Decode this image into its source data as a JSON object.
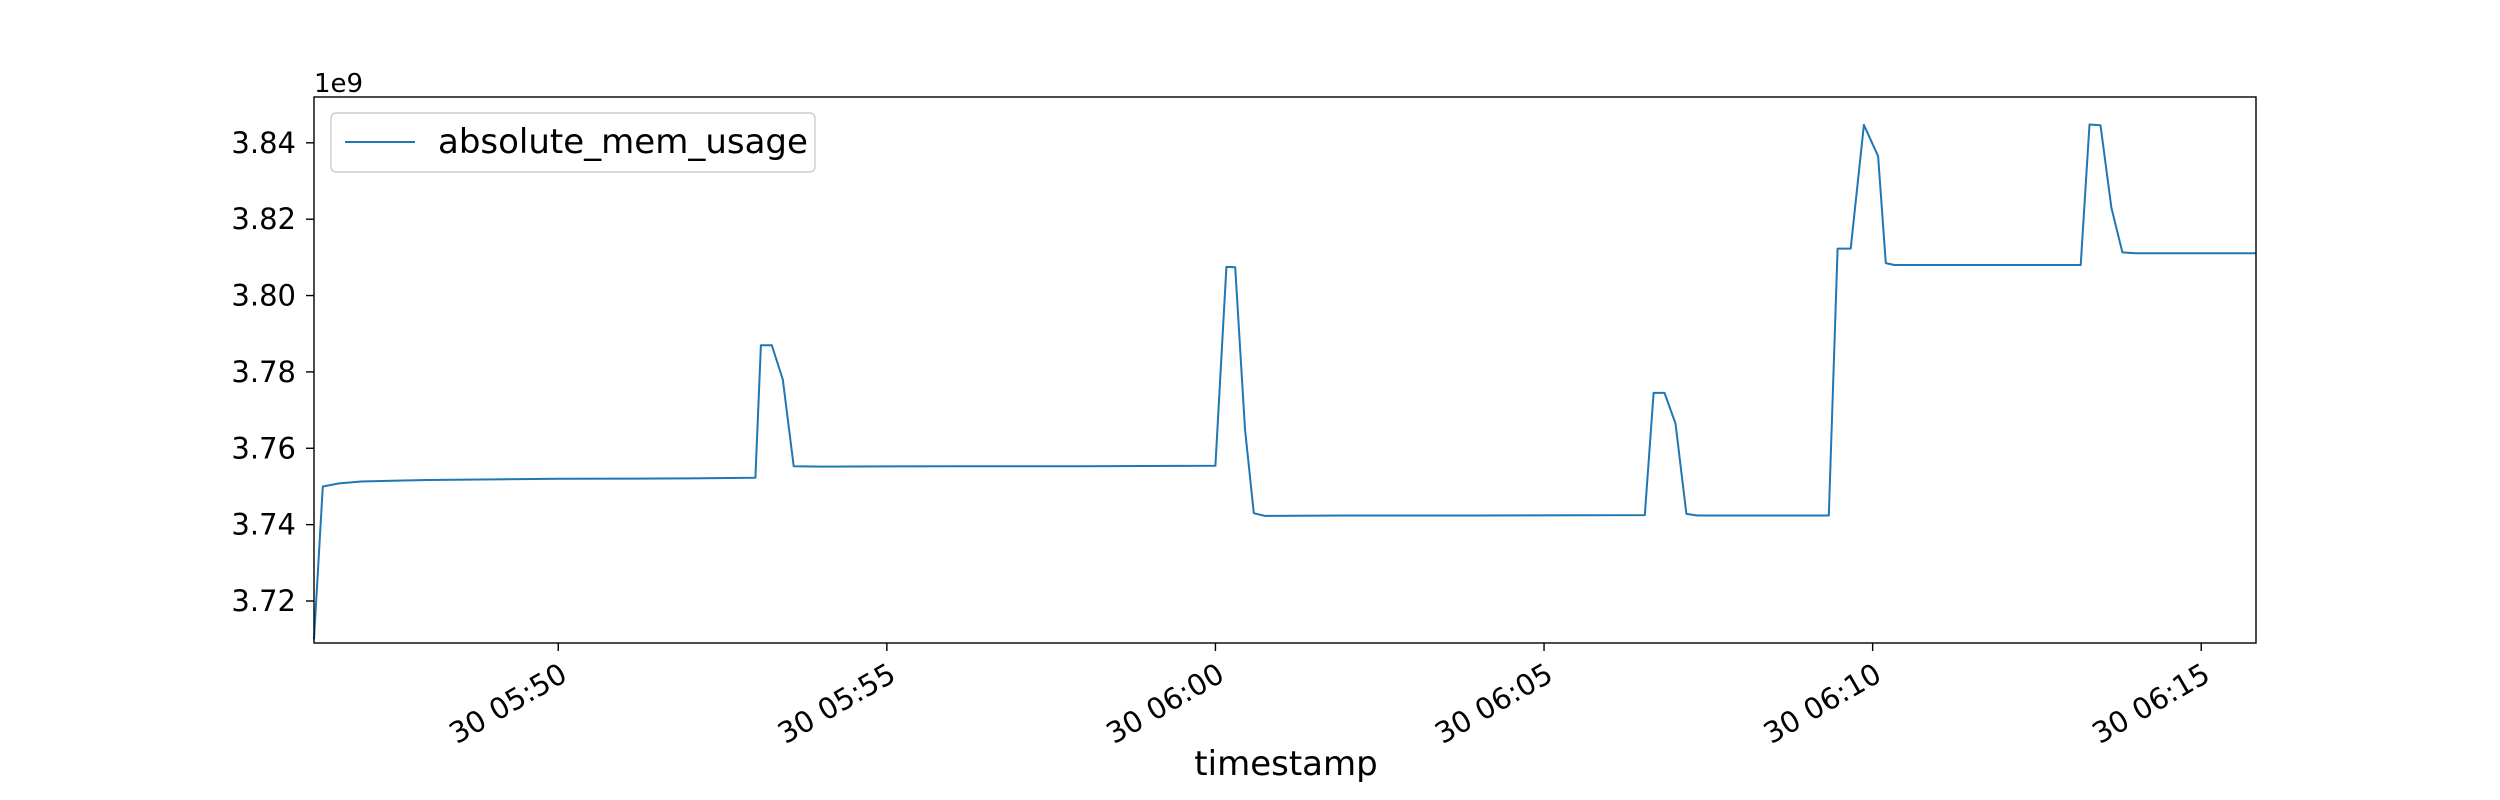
{
  "chart_data": {
    "type": "line",
    "title": "",
    "xlabel": "timestamp",
    "ylabel": "",
    "y_offset_text": "1e9",
    "y_scale_factor": 1000000000,
    "xlim": [
      "05:46:17",
      "06:15:50"
    ],
    "ylim": [
      3.709,
      3.852
    ],
    "yticks": [
      3.72,
      3.74,
      3.76,
      3.78,
      3.8,
      3.82,
      3.84
    ],
    "ytick_labels": [
      "3.72",
      "3.74",
      "3.76",
      "3.78",
      "3.80",
      "3.82",
      "3.84"
    ],
    "xticks": [
      "05:50:00",
      "05:55:00",
      "06:00:00",
      "06:05:00",
      "06:10:00",
      "06:15:00"
    ],
    "xtick_labels": [
      "30 05:50",
      "30 05:55",
      "30 06:00",
      "30 06:05",
      "30 06:10",
      "30 06:15"
    ],
    "grid": false,
    "legend_position": "top-left",
    "colors": {
      "series": "#1f77b4",
      "axes": "#000000"
    },
    "series": [
      {
        "name": "absolute_mem_usage",
        "points": [
          [
            "05:46:17",
            3.71
          ],
          [
            "05:46:25",
            3.75
          ],
          [
            "05:46:40",
            3.7508
          ],
          [
            "05:47:00",
            3.7513
          ],
          [
            "05:48:00",
            3.7517
          ],
          [
            "05:50:00",
            3.752
          ],
          [
            "05:52:00",
            3.7521
          ],
          [
            "05:53:00",
            3.7523
          ],
          [
            "05:53:05",
            3.787
          ],
          [
            "05:53:15",
            3.787
          ],
          [
            "05:53:25",
            3.778
          ],
          [
            "05:53:35",
            3.7553
          ],
          [
            "05:54:00",
            3.7552
          ],
          [
            "05:56:00",
            3.7553
          ],
          [
            "05:58:00",
            3.7553
          ],
          [
            "06:00:00",
            3.7554
          ],
          [
            "06:00:10",
            3.8075
          ],
          [
            "06:00:18",
            3.8074
          ],
          [
            "06:00:27",
            3.765
          ],
          [
            "06:00:35",
            3.743
          ],
          [
            "06:00:45",
            3.7423
          ],
          [
            "06:02:00",
            3.7424
          ],
          [
            "06:04:00",
            3.7424
          ],
          [
            "06:06:32",
            3.7425
          ],
          [
            "06:06:40",
            3.7745
          ],
          [
            "06:06:50",
            3.7745
          ],
          [
            "06:07:00",
            3.7665
          ],
          [
            "06:07:10",
            3.7428
          ],
          [
            "06:07:20",
            3.7424
          ],
          [
            "06:09:20",
            3.7424
          ],
          [
            "06:09:28",
            3.8123
          ],
          [
            "06:09:40",
            3.8123
          ],
          [
            "06:09:52",
            3.8447
          ],
          [
            "06:10:05",
            3.8365
          ],
          [
            "06:10:12",
            3.8085
          ],
          [
            "06:10:20",
            3.808
          ],
          [
            "06:13:10",
            3.808
          ],
          [
            "06:13:18",
            3.8448
          ],
          [
            "06:13:28",
            3.8446
          ],
          [
            "06:13:38",
            3.823
          ],
          [
            "06:13:48",
            3.8113
          ],
          [
            "06:14:00",
            3.8111
          ],
          [
            "06:15:50",
            3.8111
          ]
        ]
      }
    ]
  }
}
